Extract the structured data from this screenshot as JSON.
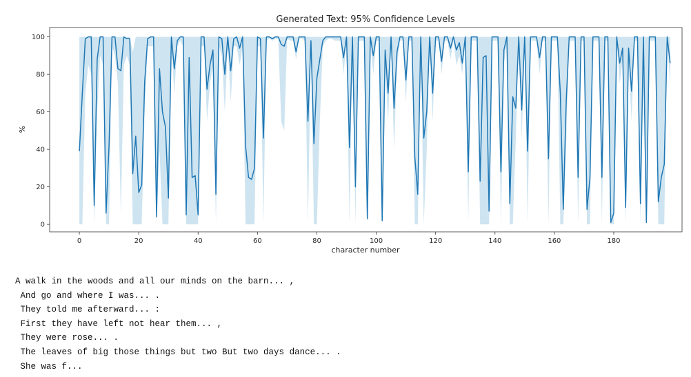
{
  "chart_data": {
    "type": "line",
    "title": "Generated Text: 95% Confidence Levels",
    "xlabel": "character number",
    "ylabel": "%",
    "xlim": [
      -10,
      203
    ],
    "ylim": [
      -4,
      105
    ],
    "xticks": [
      0,
      20,
      40,
      60,
      80,
      100,
      120,
      140,
      160,
      180
    ],
    "yticks": [
      0,
      20,
      40,
      60,
      80,
      100
    ],
    "grid": false,
    "series": [
      {
        "line_color": "#1f77b4",
        "band_color": "#a6cee3",
        "x": [
          0,
          1,
          2,
          3,
          4,
          5,
          6,
          7,
          8,
          9,
          10,
          11,
          12,
          13,
          14,
          15,
          16,
          17,
          18,
          19,
          20,
          21,
          22,
          23,
          24,
          25,
          26,
          27,
          28,
          29,
          30,
          31,
          32,
          33,
          34,
          35,
          36,
          37,
          38,
          39,
          40,
          41,
          42,
          43,
          44,
          45,
          46,
          47,
          48,
          49,
          50,
          51,
          52,
          53,
          54,
          55,
          56,
          57,
          58,
          59,
          60,
          61,
          62,
          63,
          64,
          65,
          66,
          67,
          68,
          69,
          70,
          71,
          72,
          73,
          74,
          75,
          76,
          77,
          78,
          79,
          80,
          81,
          82,
          83,
          84,
          85,
          86,
          87,
          88,
          89,
          90,
          91,
          92,
          93,
          94,
          95,
          96,
          97,
          98,
          99,
          100,
          101,
          102,
          103,
          104,
          105,
          106,
          107,
          108,
          109,
          110,
          111,
          112,
          113,
          114,
          115,
          116,
          117,
          118,
          119,
          120,
          121,
          122,
          123,
          124,
          125,
          126,
          127,
          128,
          129,
          130,
          131,
          132,
          133,
          134,
          135,
          136,
          137,
          138,
          139,
          140,
          141,
          142,
          143,
          144,
          145,
          146,
          147,
          148,
          149,
          150,
          151,
          152,
          153,
          154,
          155,
          156,
          157,
          158,
          159,
          160,
          161,
          162,
          163,
          164,
          165,
          166,
          167,
          168,
          169,
          170,
          171,
          172,
          173,
          174,
          175,
          176,
          177,
          178,
          179,
          180,
          181,
          182,
          183,
          184,
          185,
          186,
          187,
          188,
          189,
          190,
          191,
          192,
          193,
          194,
          195,
          196,
          197,
          198,
          199
        ],
        "values": [
          39,
          70,
          99,
          100,
          100,
          10,
          88,
          100,
          100,
          6,
          42,
          100,
          100,
          83,
          82,
          100,
          99,
          99,
          27,
          47,
          17,
          21,
          76,
          99,
          100,
          100,
          4,
          83,
          60,
          52,
          14,
          100,
          83,
          98,
          100,
          100,
          5,
          89,
          25,
          26,
          5,
          100,
          100,
          72,
          85,
          93,
          16,
          100,
          99,
          80,
          100,
          82,
          99,
          100,
          94,
          100,
          42,
          25,
          24,
          30,
          100,
          99,
          46,
          100,
          100,
          99,
          100,
          100,
          96,
          95,
          100,
          100,
          100,
          92,
          100,
          100,
          100,
          55,
          98,
          43,
          78,
          88,
          98,
          100,
          100,
          100,
          100,
          100,
          100,
          89,
          100,
          41,
          100,
          20,
          100,
          100,
          100,
          3,
          100,
          90,
          100,
          100,
          2,
          93,
          70,
          100,
          62,
          92,
          100,
          100,
          77,
          100,
          100,
          36,
          16,
          100,
          46,
          60,
          100,
          70,
          100,
          100,
          87,
          100,
          100,
          94,
          100,
          93,
          97,
          86,
          100,
          28,
          100,
          100,
          100,
          23,
          89,
          90,
          7,
          100,
          100,
          100,
          28,
          93,
          100,
          11,
          68,
          62,
          100,
          61,
          100,
          39,
          100,
          100,
          100,
          89,
          100,
          100,
          35,
          100,
          100,
          100,
          70,
          8,
          66,
          100,
          100,
          100,
          25,
          100,
          100,
          8,
          25,
          100,
          100,
          100,
          25,
          100,
          100,
          1,
          6,
          100,
          86,
          94,
          9,
          94,
          71,
          100,
          100,
          11,
          100,
          1,
          100,
          100,
          100,
          12,
          25,
          32,
          100,
          86
        ],
        "band_upper": [
          100,
          100,
          100,
          100,
          100,
          100,
          100,
          100,
          100,
          100,
          100,
          100,
          100,
          100,
          100,
          100,
          100,
          100,
          92,
          100,
          100,
          100,
          100,
          100,
          100,
          100,
          100,
          100,
          100,
          100,
          100,
          100,
          100,
          100,
          100,
          100,
          100,
          100,
          100,
          100,
          100,
          100,
          100,
          100,
          100,
          100,
          100,
          100,
          100,
          100,
          100,
          100,
          100,
          100,
          100,
          100,
          100,
          100,
          100,
          100,
          100,
          100,
          100,
          100,
          100,
          100,
          100,
          100,
          100,
          100,
          100,
          100,
          100,
          100,
          100,
          100,
          100,
          100,
          100,
          100,
          100,
          100,
          100,
          100,
          100,
          100,
          100,
          100,
          100,
          100,
          100,
          100,
          100,
          100,
          100,
          100,
          100,
          100,
          100,
          100,
          100,
          100,
          100,
          100,
          100,
          100,
          100,
          100,
          100,
          100,
          100,
          100,
          100,
          100,
          100,
          100,
          100,
          100,
          100,
          100,
          100,
          100,
          100,
          100,
          100,
          100,
          100,
          100,
          100,
          100,
          100,
          100,
          100,
          100,
          100,
          100,
          100,
          100,
          100,
          100,
          100,
          100,
          100,
          100,
          100,
          100,
          100,
          100,
          100,
          100,
          100,
          100,
          100,
          100,
          100,
          100,
          100,
          100,
          100,
          100,
          100,
          100,
          100,
          100,
          100,
          100,
          100,
          100,
          100,
          100,
          100,
          100,
          100,
          100,
          100,
          100,
          100,
          100,
          100,
          100,
          100,
          100,
          100,
          100,
          100,
          100,
          100,
          100,
          100,
          100,
          100,
          100,
          100,
          100,
          100,
          100,
          100,
          100,
          100,
          100
        ],
        "band_lower": [
          0,
          0,
          70,
          85,
          80,
          0,
          60,
          90,
          85,
          0,
          0,
          95,
          90,
          75,
          5,
          85,
          90,
          85,
          0,
          0,
          0,
          0,
          60,
          95,
          95,
          95,
          0,
          40,
          0,
          0,
          0,
          95,
          70,
          95,
          98,
          95,
          0,
          0,
          0,
          0,
          0,
          95,
          95,
          55,
          75,
          85,
          0,
          95,
          90,
          60,
          95,
          65,
          95,
          95,
          85,
          95,
          0,
          0,
          0,
          0,
          95,
          95,
          0,
          98,
          99,
          98,
          99,
          99,
          55,
          50,
          99,
          98,
          98,
          88,
          99,
          99,
          98,
          0,
          92,
          0,
          0,
          55,
          95,
          98,
          99,
          99,
          98,
          98,
          98,
          80,
          98,
          0,
          98,
          0,
          98,
          98,
          98,
          0,
          98,
          80,
          98,
          98,
          0,
          85,
          55,
          98,
          40,
          85,
          98,
          98,
          65,
          98,
          98,
          0,
          0,
          98,
          0,
          40,
          98,
          55,
          98,
          98,
          80,
          98,
          98,
          88,
          98,
          85,
          90,
          80,
          98,
          0,
          98,
          98,
          98,
          0,
          0,
          0,
          0,
          98,
          98,
          98,
          0,
          85,
          98,
          0,
          0,
          45,
          98,
          45,
          98,
          0,
          98,
          98,
          98,
          80,
          98,
          98,
          0,
          98,
          98,
          98,
          0,
          0,
          45,
          98,
          98,
          98,
          0,
          98,
          98,
          0,
          0,
          98,
          98,
          98,
          0,
          98,
          98,
          0,
          0,
          98,
          75,
          88,
          0,
          88,
          55,
          98,
          98,
          0,
          98,
          0,
          98,
          98,
          98,
          0,
          0,
          0,
          98,
          75
        ]
      }
    ]
  },
  "text_output": {
    "lines": [
      "A walk in the woods and all our minds on the barn... ,",
      " And go and where I was... .",
      " They told me afterward... :",
      " First they have left not hear them... ,",
      " They were rose... .",
      " The leaves of big those things but two But two days dance... .",
      " She was f..."
    ]
  }
}
